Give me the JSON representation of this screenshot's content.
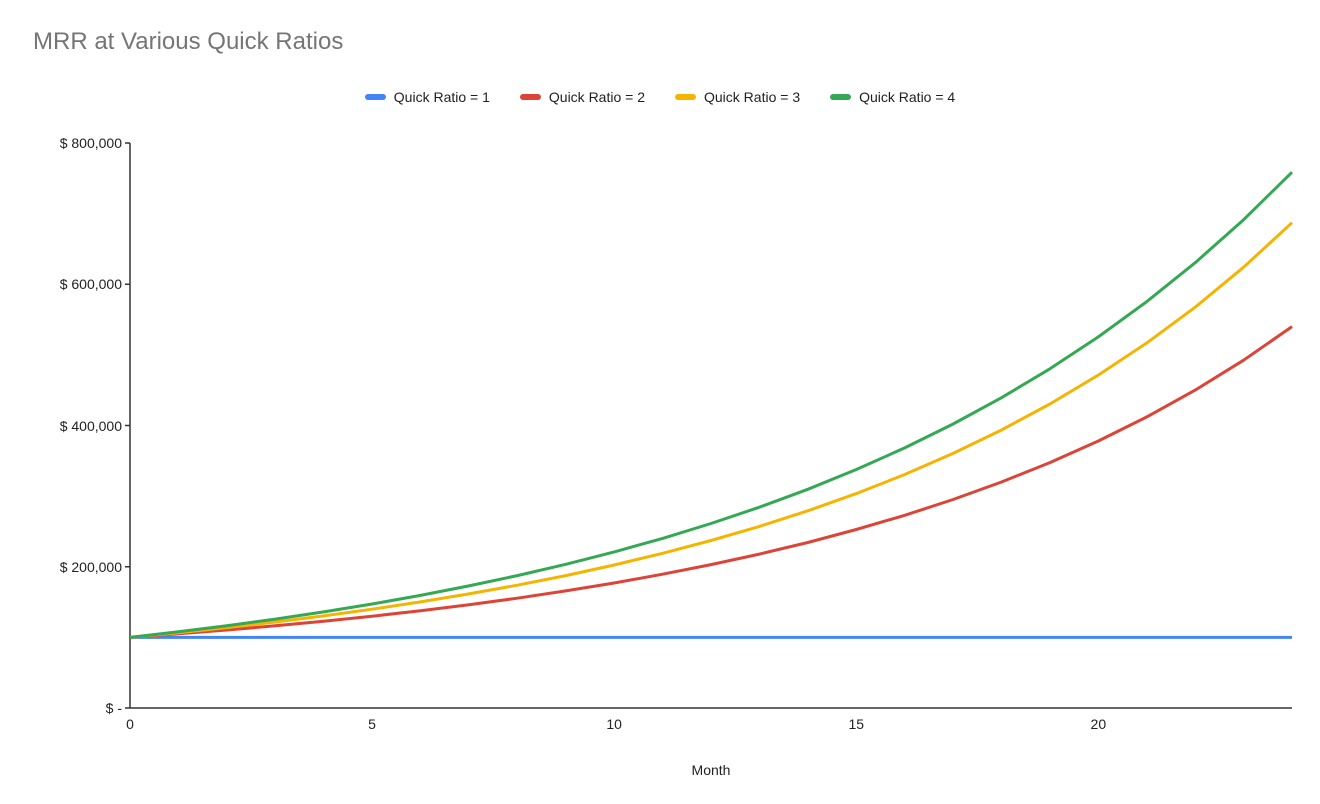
{
  "header": {
    "title": "MRR at Various Quick Ratios",
    "title_color": "#757575"
  },
  "legend": {
    "items": [
      {
        "label": "Quick Ratio = 1",
        "color": "#4285F4"
      },
      {
        "label": "Quick Ratio = 2",
        "color": "#DB4437"
      },
      {
        "label": "Quick Ratio = 3",
        "color": "#F4B400"
      },
      {
        "label": "Quick Ratio = 4",
        "color": "#34A853"
      }
    ]
  },
  "chart_data": {
    "type": "line",
    "title": "MRR at Various Quick Ratios",
    "xlabel": "Month",
    "ylabel": "",
    "grid": false,
    "legend_position": "top",
    "xlim": [
      0,
      24
    ],
    "ylim": [
      0,
      800000
    ],
    "x": [
      0,
      1,
      2,
      3,
      4,
      5,
      6,
      7,
      8,
      9,
      10,
      11,
      12,
      13,
      14,
      15,
      16,
      17,
      18,
      19,
      20,
      21,
      22,
      23,
      24
    ],
    "x_ticks": [
      0,
      5,
      10,
      15,
      20
    ],
    "y_ticks": [
      {
        "value": 0,
        "label": "$ -"
      },
      {
        "value": 200000,
        "label": "$ 200,000"
      },
      {
        "value": 400000,
        "label": "$ 400,000"
      },
      {
        "value": 600000,
        "label": "$ 600,000"
      },
      {
        "value": 800000,
        "label": "$ 800,000"
      }
    ],
    "axis_color": "#333333",
    "series": [
      {
        "name": "Quick Ratio = 1",
        "color": "#4285F4",
        "values": [
          100000,
          100000,
          100000,
          100000,
          100000,
          100000,
          100000,
          100000,
          100000,
          100000,
          100000,
          100000,
          100000,
          100000,
          100000,
          100000,
          100000,
          100000,
          100000,
          100000,
          100000,
          100000,
          100000,
          100000,
          100000
        ]
      },
      {
        "name": "Quick Ratio = 2",
        "color": "#DB4437",
        "values": [
          100000,
          105000,
          110400,
          116400,
          122900,
          130000,
          137700,
          146200,
          155500,
          165800,
          177000,
          189400,
          203000,
          217900,
          234400,
          252700,
          272900,
          295200,
          320000,
          347500,
          378100,
          412200,
          450100,
          492500,
          540000
        ]
      },
      {
        "name": "Quick Ratio = 3",
        "color": "#F4B400",
        "values": [
          100000,
          106600,
          113900,
          121800,
          130400,
          139900,
          150200,
          161500,
          173900,
          187500,
          202500,
          219000,
          237100,
          257100,
          279200,
          303600,
          330600,
          360500,
          393600,
          430400,
          471400,
          516900,
          567500,
          624100,
          687200
        ]
      },
      {
        "name": "Quick Ratio = 4",
        "color": "#34A853",
        "values": [
          100000,
          107900,
          116500,
          125900,
          136100,
          147300,
          159500,
          172900,
          187500,
          203400,
          221000,
          240200,
          261200,
          284300,
          309700,
          337700,
          368300,
          402100,
          439300,
          480300,
          525500,
          575400,
          630500,
          691400,
          758700
        ]
      }
    ]
  }
}
